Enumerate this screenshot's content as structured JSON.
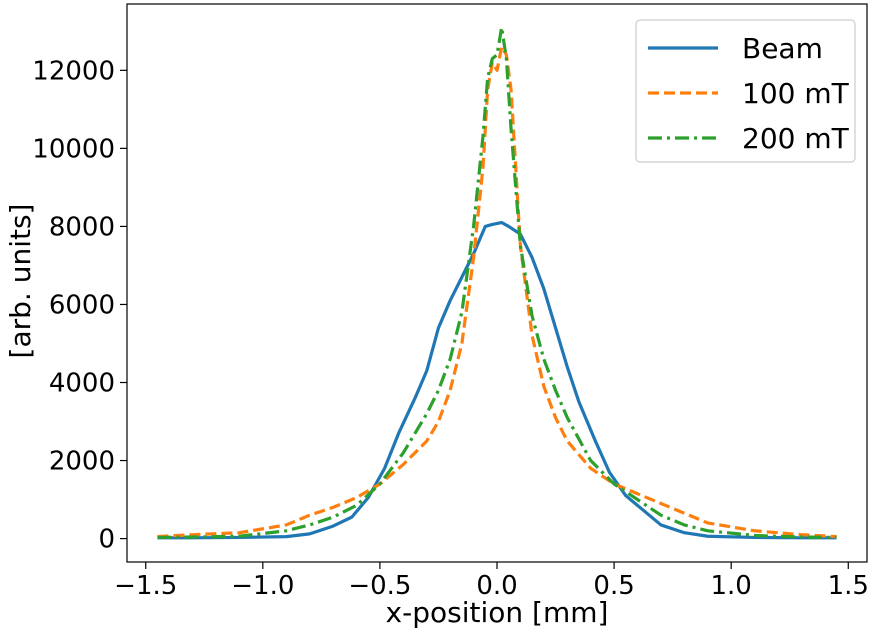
{
  "chart_data": {
    "type": "line",
    "title": "",
    "xlabel": "x-position [mm]",
    "ylabel": "[arb. units]",
    "xlim": [
      -1.58,
      1.58
    ],
    "ylim": [
      -600,
      13700
    ],
    "xticks": [
      -1.5,
      -1.0,
      -0.5,
      0.0,
      0.5,
      1.0,
      1.5
    ],
    "xtick_labels": [
      "−1.5",
      "−1.0",
      "−0.5",
      "0.0",
      "0.5",
      "1.0",
      "1.5"
    ],
    "yticks": [
      0,
      2000,
      4000,
      6000,
      8000,
      10000,
      12000
    ],
    "ytick_labels": [
      "0",
      "2000",
      "4000",
      "6000",
      "8000",
      "10000",
      "12000"
    ],
    "legend_position": "top-right",
    "series": [
      {
        "name": "Beam",
        "color": "#1f77b4",
        "dash": "solid",
        "x": [
          -1.45,
          -1.3,
          -1.1,
          -0.9,
          -0.8,
          -0.7,
          -0.62,
          -0.55,
          -0.48,
          -0.42,
          -0.35,
          -0.3,
          -0.25,
          -0.2,
          -0.15,
          -0.1,
          -0.05,
          -0.02,
          0.02,
          0.05,
          0.1,
          0.15,
          0.2,
          0.25,
          0.3,
          0.35,
          0.42,
          0.48,
          0.55,
          0.62,
          0.7,
          0.8,
          0.9,
          1.1,
          1.3,
          1.45
        ],
        "y": [
          20,
          20,
          30,
          50,
          120,
          320,
          550,
          1050,
          1800,
          2700,
          3600,
          4300,
          5400,
          6100,
          6700,
          7300,
          8000,
          8050,
          8100,
          8000,
          7800,
          7200,
          6400,
          5400,
          4400,
          3500,
          2500,
          1700,
          1100,
          750,
          350,
          150,
          60,
          30,
          20,
          20
        ]
      },
      {
        "name": "100 mT",
        "color": "#ff7f0e",
        "dash": "dashed",
        "x": [
          -1.45,
          -1.3,
          -1.1,
          -0.9,
          -0.8,
          -0.7,
          -0.6,
          -0.5,
          -0.4,
          -0.3,
          -0.25,
          -0.2,
          -0.15,
          -0.1,
          -0.06,
          -0.04,
          -0.02,
          0.0,
          0.02,
          0.04,
          0.06,
          0.1,
          0.15,
          0.2,
          0.25,
          0.3,
          0.4,
          0.5,
          0.6,
          0.7,
          0.8,
          0.9,
          1.1,
          1.3,
          1.45
        ],
        "y": [
          50,
          100,
          150,
          350,
          600,
          800,
          1050,
          1400,
          1900,
          2500,
          3000,
          3800,
          5000,
          7200,
          9500,
          11500,
          12200,
          12000,
          12600,
          12400,
          11500,
          7500,
          5200,
          3900,
          3100,
          2500,
          1800,
          1400,
          1150,
          900,
          650,
          400,
          200,
          100,
          50
        ]
      },
      {
        "name": "200 mT",
        "color": "#2ca02c",
        "dash": "dashdot",
        "x": [
          -1.45,
          -1.3,
          -1.1,
          -0.9,
          -0.8,
          -0.7,
          -0.6,
          -0.5,
          -0.4,
          -0.3,
          -0.25,
          -0.2,
          -0.15,
          -0.1,
          -0.06,
          -0.04,
          -0.02,
          0.0,
          0.02,
          0.04,
          0.06,
          0.1,
          0.15,
          0.2,
          0.25,
          0.3,
          0.4,
          0.5,
          0.6,
          0.7,
          0.8,
          0.9,
          1.1,
          1.3,
          1.45
        ],
        "y": [
          30,
          40,
          60,
          200,
          350,
          550,
          850,
          1400,
          2200,
          3200,
          3800,
          4600,
          5800,
          8000,
          10300,
          11800,
          12300,
          12400,
          13100,
          12300,
          10500,
          7500,
          5700,
          4600,
          3800,
          3100,
          2000,
          1400,
          1000,
          600,
          350,
          200,
          80,
          40,
          30
        ]
      }
    ]
  }
}
